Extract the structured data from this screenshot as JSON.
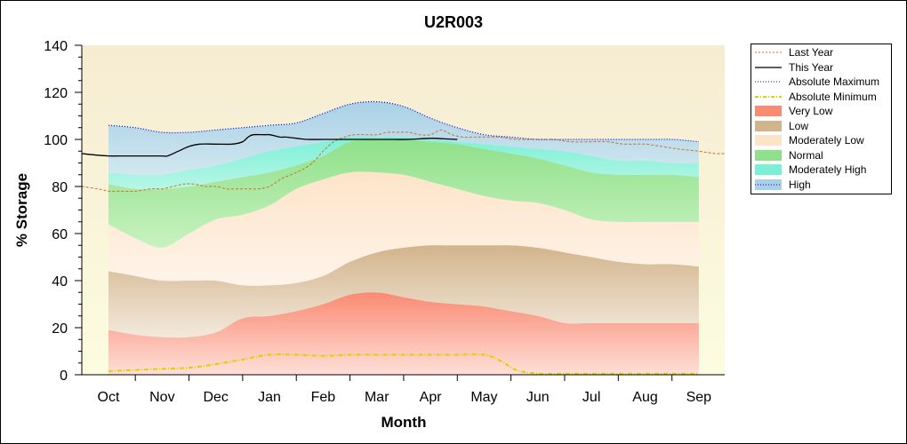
{
  "chart_data": {
    "type": "area",
    "title": "U2R003",
    "xlabel": "Month",
    "ylabel": "% Storage",
    "ylim": [
      0,
      140
    ],
    "yticks": [
      0,
      20,
      40,
      60,
      80,
      100,
      120,
      140
    ],
    "categories": [
      "Oct",
      "Nov",
      "Dec",
      "Jan",
      "Feb",
      "Mar",
      "Apr",
      "May",
      "Jun",
      "Jul",
      "Aug",
      "Sep"
    ],
    "x_unit": "month index (Oct = 0)",
    "band_edges": {
      "x": [
        0,
        0.5,
        1,
        1.5,
        2,
        2.5,
        3,
        3.5,
        4,
        4.5,
        5,
        5.5,
        6,
        6.5,
        7,
        7.5,
        8,
        8.5,
        9,
        9.5,
        10,
        10.5,
        11
      ],
      "very_low_top": [
        19,
        17,
        16,
        16,
        18,
        24,
        25,
        27,
        30,
        34,
        35,
        33,
        31,
        30,
        29,
        27,
        25,
        22,
        22,
        22,
        22,
        22,
        22
      ],
      "low_top": [
        44,
        42,
        40,
        40,
        40,
        38,
        38,
        39,
        42,
        48,
        52,
        54,
        55,
        55,
        55,
        55,
        54,
        52,
        50,
        48,
        47,
        47,
        46
      ],
      "moderately_low_top": [
        64,
        58,
        54,
        60,
        66,
        68,
        72,
        79,
        83,
        86,
        86,
        85,
        82,
        79,
        76,
        74,
        73,
        70,
        66,
        65,
        65,
        65,
        65
      ],
      "normal_top": [
        81,
        79,
        79,
        80,
        82,
        84,
        86,
        89,
        93,
        99,
        100,
        100,
        99,
        98,
        96,
        94,
        92,
        89,
        86,
        85,
        85,
        85,
        84
      ],
      "moderately_high_top": [
        86,
        85,
        85,
        87,
        89,
        92,
        95,
        97,
        99,
        101,
        101,
        101,
        100,
        99,
        98,
        97,
        96,
        95,
        93,
        91,
        91,
        90,
        90
      ],
      "high_top": [
        106,
        105,
        103,
        103,
        104,
        105,
        106,
        107,
        111,
        115,
        116,
        114,
        109,
        105,
        102,
        101,
        100,
        100,
        100,
        100,
        100,
        100,
        99
      ]
    },
    "series": [
      {
        "name": "Last Year",
        "style": "dashed",
        "color": "#c8702a",
        "x": [
          -0.5,
          -0.2,
          0,
          0.2,
          0.5,
          0.8,
          1,
          1.2,
          1.4,
          1.6,
          1.8,
          2,
          2.2,
          2.4,
          2.6,
          2.8,
          3,
          3.2,
          3.4,
          3.6,
          3.8,
          4,
          4.2,
          4.4,
          4.6,
          4.8,
          5,
          5.2,
          5.4,
          5.6,
          5.8,
          6,
          6.2,
          6.4,
          6.6,
          6.8,
          7,
          7.3,
          7.6,
          8,
          8.3,
          8.6,
          9,
          9.3,
          9.6,
          10,
          10.3,
          10.6,
          11,
          11.3,
          11.5
        ],
        "values": [
          80,
          79,
          78,
          78,
          78,
          79,
          79,
          80,
          81,
          81,
          80,
          80,
          79,
          79,
          79,
          79,
          80,
          83,
          85,
          87,
          90,
          95,
          99,
          101,
          102,
          102,
          102,
          103,
          103,
          103,
          102,
          102,
          104,
          102,
          101,
          101,
          101,
          101,
          100,
          100,
          100,
          99,
          99,
          99,
          98,
          98,
          97,
          96,
          95,
          94,
          94
        ]
      },
      {
        "name": "This Year",
        "style": "solid",
        "color": "#000000",
        "x": [
          -0.5,
          -0.3,
          0,
          0.3,
          0.5,
          0.7,
          0.9,
          1,
          1.1,
          1.3,
          1.5,
          1.7,
          2,
          2.3,
          2.5,
          2.6,
          2.7,
          2.9,
          3,
          3.2,
          3.3,
          3.5,
          3.7,
          4,
          4.3,
          4.6,
          5,
          5.3,
          5.6,
          6,
          6.3,
          6.5
        ],
        "values": [
          94,
          93.5,
          93,
          93,
          93,
          93,
          93,
          93,
          93,
          95,
          97,
          98,
          98,
          98,
          99,
          101,
          102,
          102,
          102,
          101,
          101,
          100.5,
          100,
          100,
          100,
          100,
          100,
          100,
          100,
          100.5,
          100.2,
          100
        ]
      },
      {
        "name": "Absolute Maximum",
        "style": "dotted",
        "color": "#0000cc",
        "x": [
          0,
          0.5,
          1,
          1.5,
          2,
          2.5,
          3,
          3.5,
          4,
          4.5,
          5,
          5.5,
          6,
          6.5,
          7,
          7.5,
          8,
          8.5,
          9,
          9.5,
          10,
          10.5,
          11
        ],
        "values": [
          106,
          105,
          103,
          103,
          104,
          105,
          106,
          107,
          111,
          115,
          116,
          114,
          109,
          105,
          102,
          101,
          100,
          100,
          100,
          100,
          100,
          100,
          99
        ]
      },
      {
        "name": "Absolute Minimum",
        "style": "dash-dot",
        "color": "#e0d000",
        "x": [
          0,
          0.5,
          1,
          1.5,
          2,
          2.5,
          3,
          3.5,
          4,
          4.5,
          5,
          5.5,
          6,
          6.5,
          7,
          7.3,
          7.6,
          8,
          8.5,
          9,
          9.5,
          10,
          10.5,
          11
        ],
        "values": [
          1.5,
          2,
          2.5,
          3,
          4.5,
          6.5,
          8.5,
          8.5,
          8,
          8.5,
          8.5,
          8.5,
          8.5,
          8.5,
          8.5,
          6,
          2,
          0.5,
          0.5,
          0.5,
          0.5,
          0.5,
          0.5,
          0.5
        ]
      }
    ],
    "bands": [
      {
        "name": "Very Low",
        "color": "#fa8a72"
      },
      {
        "name": "Low",
        "color": "#d2b48c"
      },
      {
        "name": "Moderately Low",
        "color": "#fde4c8"
      },
      {
        "name": "Normal",
        "color": "#8fe08a"
      },
      {
        "name": "Moderately High",
        "color": "#7cf0d6"
      },
      {
        "name": "High",
        "color": "#a9d0e6"
      }
    ],
    "legend": [
      "Last Year",
      "This Year",
      "Absolute Maximum",
      "Absolute Minimum",
      "Very Low",
      "Low",
      "Moderately Low",
      "Normal",
      "Moderately High",
      "High"
    ],
    "legend_position": "right",
    "plot_background": "#fcfce0"
  }
}
